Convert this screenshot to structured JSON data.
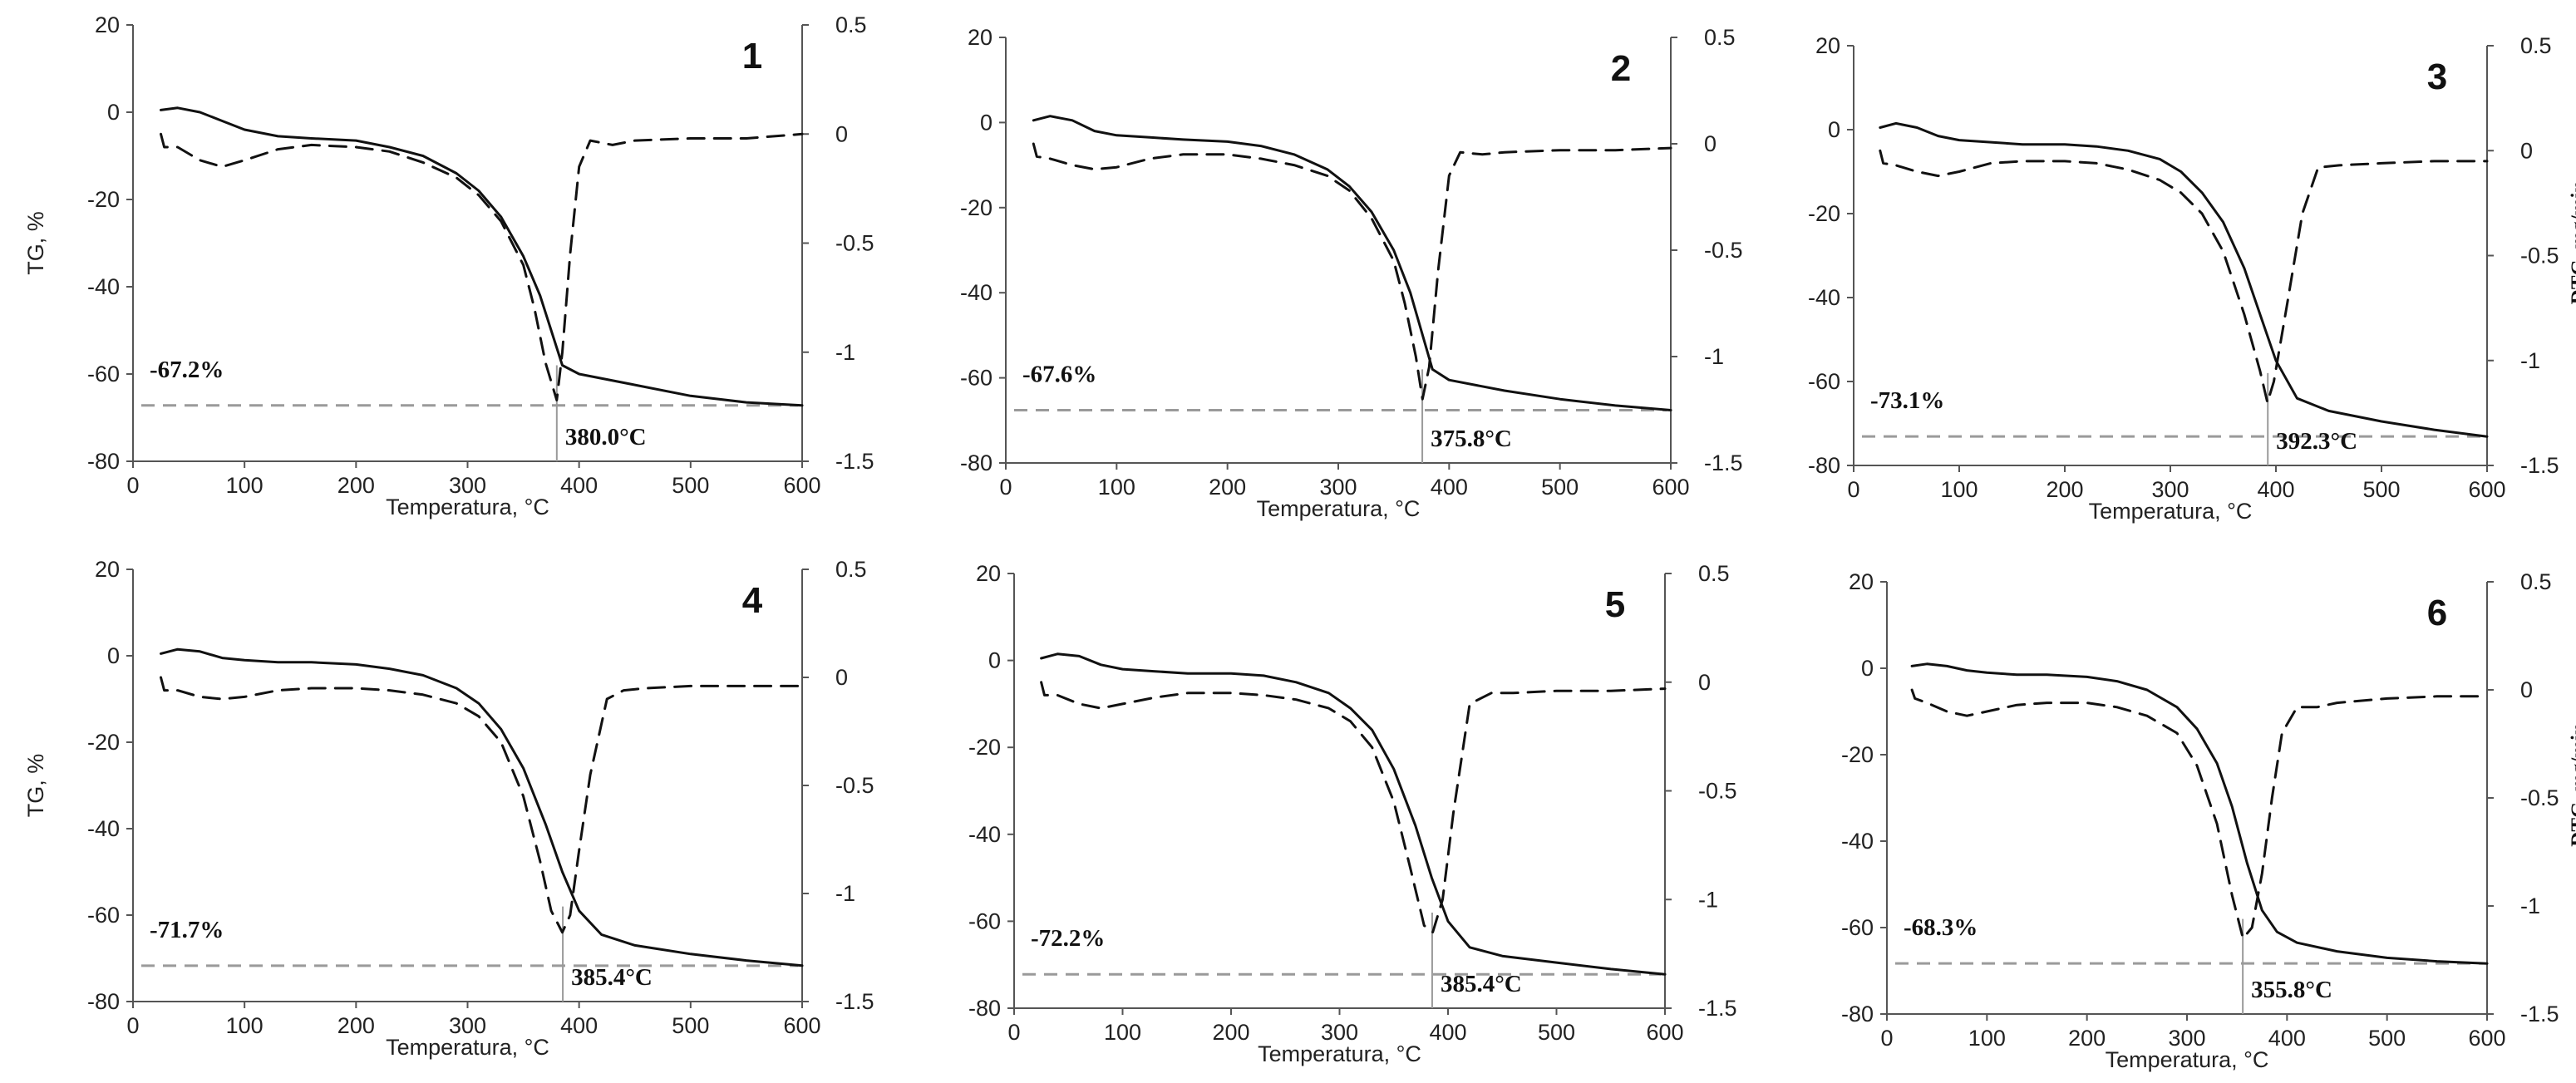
{
  "chart_data": [
    {
      "type": "line",
      "panel_number": "1",
      "xlabel": "Temperatura, °C",
      "ylabel": "TG, %",
      "y2label": "--- DTG, mg/min",
      "show_ylabel": true,
      "show_y2label": false,
      "xlim": [
        0,
        600
      ],
      "ylim": [
        -80,
        20
      ],
      "y2lim": [
        -1.5,
        0.5
      ],
      "x_ticks": [
        "0",
        "100",
        "200",
        "300",
        "400",
        "500",
        "600"
      ],
      "y_ticks": [
        "-80",
        "-60",
        "-40",
        "-20",
        "0",
        "20"
      ],
      "y2_ticks": [
        "-1.5",
        "-1",
        "-0.5",
        "0",
        "0.5"
      ],
      "mass_loss_label": "-67.2%",
      "mass_loss_value": -67.2,
      "peak_temp_label": "380.0°C",
      "peak_temp_value": 380.0,
      "series": [
        {
          "name": "TG",
          "style": "solid",
          "axis": "left",
          "x": [
            25,
            40,
            60,
            80,
            100,
            130,
            160,
            200,
            230,
            260,
            290,
            310,
            330,
            350,
            365,
            375,
            385,
            400,
            450,
            500,
            550,
            600
          ],
          "y": [
            0.5,
            1,
            0,
            -2,
            -4,
            -5.5,
            -6,
            -6.5,
            -8,
            -10,
            -14,
            -18,
            -24,
            -33,
            -42,
            -50,
            -58,
            -60,
            -62.5,
            -65,
            -66.5,
            -67.2
          ]
        },
        {
          "name": "DTG",
          "style": "dashed",
          "axis": "right",
          "x": [
            25,
            28,
            40,
            60,
            80,
            100,
            130,
            160,
            200,
            230,
            260,
            290,
            310,
            330,
            350,
            360,
            370,
            380,
            385,
            392,
            400,
            410,
            430,
            450,
            500,
            550,
            600
          ],
          "y": [
            0,
            -0.06,
            -0.06,
            -0.12,
            -0.15,
            -0.12,
            -0.07,
            -0.05,
            -0.06,
            -0.08,
            -0.13,
            -0.2,
            -0.28,
            -0.4,
            -0.6,
            -0.8,
            -1.05,
            -1.22,
            -1.0,
            -0.55,
            -0.15,
            -0.03,
            -0.05,
            -0.03,
            -0.02,
            -0.02,
            0
          ]
        }
      ]
    },
    {
      "type": "line",
      "panel_number": "2",
      "xlabel": "Temperatura, °C",
      "ylabel": "TG, %",
      "y2label": "--- DTG, mg/min",
      "show_ylabel": false,
      "show_y2label": false,
      "xlim": [
        0,
        600
      ],
      "ylim": [
        -80,
        20
      ],
      "y2lim": [
        -1.5,
        0.5
      ],
      "x_ticks": [
        "0",
        "100",
        "200",
        "300",
        "400",
        "500",
        "600"
      ],
      "y_ticks": [
        "-80",
        "-60",
        "-40",
        "-20",
        "0",
        "20"
      ],
      "y2_ticks": [
        "-1.5",
        "-1",
        "-0.5",
        "0",
        "0.5"
      ],
      "mass_loss_label": "-67.6%",
      "mass_loss_value": -67.6,
      "peak_temp_label": "375.8°C",
      "peak_temp_value": 375.8,
      "series": [
        {
          "name": "TG",
          "style": "solid",
          "axis": "left",
          "x": [
            25,
            40,
            60,
            80,
            100,
            130,
            160,
            200,
            230,
            260,
            290,
            310,
            330,
            350,
            365,
            375,
            385,
            400,
            450,
            500,
            550,
            600
          ],
          "y": [
            0.5,
            1.5,
            0.5,
            -2,
            -3,
            -3.5,
            -4,
            -4.5,
            -5.5,
            -7.5,
            -11,
            -15,
            -21,
            -30,
            -40,
            -49,
            -58,
            -60.5,
            -63,
            -65,
            -66.5,
            -67.6
          ]
        },
        {
          "name": "DTG",
          "style": "dashed",
          "axis": "right",
          "x": [
            25,
            28,
            40,
            60,
            80,
            100,
            130,
            160,
            200,
            230,
            260,
            290,
            310,
            330,
            350,
            360,
            370,
            376,
            382,
            390,
            400,
            410,
            430,
            450,
            500,
            550,
            600
          ],
          "y": [
            0,
            -0.06,
            -0.07,
            -0.1,
            -0.12,
            -0.11,
            -0.07,
            -0.05,
            -0.05,
            -0.07,
            -0.1,
            -0.15,
            -0.22,
            -0.35,
            -0.55,
            -0.75,
            -1.0,
            -1.2,
            -1.05,
            -0.6,
            -0.15,
            -0.04,
            -0.05,
            -0.04,
            -0.03,
            -0.03,
            -0.02
          ]
        }
      ]
    },
    {
      "type": "line",
      "panel_number": "3",
      "xlabel": "Temperatura, °C",
      "ylabel": "TG, %",
      "y2label": "--- DTG, mg/min",
      "show_ylabel": false,
      "show_y2label": true,
      "xlim": [
        0,
        600
      ],
      "ylim": [
        -80,
        20
      ],
      "y2lim": [
        -1.5,
        0.5
      ],
      "x_ticks": [
        "0",
        "100",
        "200",
        "300",
        "400",
        "500",
        "600"
      ],
      "y_ticks": [
        "-80",
        "-60",
        "-40",
        "-20",
        "0",
        "20"
      ],
      "y2_ticks": [
        "-1.5",
        "-1",
        "-0.5",
        "0",
        "0.5"
      ],
      "mass_loss_label": "-73.1%",
      "mass_loss_value": -73.1,
      "peak_temp_label": "392.3°C",
      "peak_temp_value": 392.3,
      "series": [
        {
          "name": "TG",
          "style": "solid",
          "axis": "left",
          "x": [
            25,
            40,
            60,
            80,
            100,
            130,
            160,
            200,
            230,
            260,
            290,
            310,
            330,
            350,
            370,
            385,
            400,
            420,
            450,
            500,
            550,
            600
          ],
          "y": [
            0.5,
            1.5,
            0.5,
            -1.5,
            -2.5,
            -3,
            -3.5,
            -3.5,
            -4,
            -5,
            -7,
            -10,
            -15,
            -22,
            -33,
            -44,
            -55,
            -64,
            -67,
            -69.5,
            -71.5,
            -73.1
          ]
        },
        {
          "name": "DTG",
          "style": "dashed",
          "axis": "right",
          "x": [
            25,
            28,
            40,
            60,
            80,
            100,
            130,
            160,
            200,
            230,
            260,
            290,
            310,
            330,
            350,
            370,
            385,
            392,
            398,
            410,
            425,
            440,
            460,
            500,
            550,
            600
          ],
          "y": [
            0,
            -0.06,
            -0.07,
            -0.1,
            -0.12,
            -0.1,
            -0.06,
            -0.05,
            -0.05,
            -0.06,
            -0.09,
            -0.14,
            -0.2,
            -0.3,
            -0.48,
            -0.78,
            -1.05,
            -1.2,
            -1.1,
            -0.75,
            -0.3,
            -0.08,
            -0.07,
            -0.06,
            -0.05,
            -0.05
          ]
        }
      ]
    },
    {
      "type": "line",
      "panel_number": "4",
      "xlabel": "Temperatura, °C",
      "ylabel": "TG, %",
      "y2label": "--- DTG, mg/min",
      "show_ylabel": true,
      "show_y2label": false,
      "xlim": [
        0,
        600
      ],
      "ylim": [
        -80,
        20
      ],
      "y2lim": [
        -1.5,
        0.5
      ],
      "x_ticks": [
        "0",
        "100",
        "200",
        "300",
        "400",
        "500",
        "600"
      ],
      "y_ticks": [
        "-80",
        "-60",
        "-40",
        "-20",
        "0",
        "20"
      ],
      "y2_ticks": [
        "-1.5",
        "-1",
        "-0.5",
        "0",
        "0.5"
      ],
      "mass_loss_label": "-71.7%",
      "mass_loss_value": -71.7,
      "peak_temp_label": "385.4°C",
      "peak_temp_value": 385.4,
      "series": [
        {
          "name": "TG",
          "style": "solid",
          "axis": "left",
          "x": [
            25,
            40,
            60,
            80,
            100,
            130,
            160,
            200,
            230,
            260,
            290,
            310,
            330,
            350,
            370,
            385,
            400,
            420,
            450,
            500,
            550,
            600
          ],
          "y": [
            0.5,
            1.5,
            1,
            -0.5,
            -1,
            -1.5,
            -1.5,
            -2,
            -3,
            -4.5,
            -7.5,
            -11,
            -17,
            -26,
            -39,
            -50,
            -59,
            -64.5,
            -67,
            -69,
            -70.5,
            -71.7
          ]
        },
        {
          "name": "DTG",
          "style": "dashed",
          "axis": "right",
          "x": [
            25,
            28,
            40,
            60,
            80,
            100,
            130,
            160,
            200,
            230,
            260,
            290,
            310,
            330,
            350,
            365,
            375,
            385,
            392,
            400,
            410,
            425,
            440,
            460,
            500,
            550,
            600
          ],
          "y": [
            0,
            -0.06,
            -0.06,
            -0.09,
            -0.1,
            -0.09,
            -0.06,
            -0.05,
            -0.05,
            -0.06,
            -0.08,
            -0.12,
            -0.18,
            -0.3,
            -0.55,
            -0.85,
            -1.08,
            -1.18,
            -1.1,
            -0.8,
            -0.45,
            -0.1,
            -0.06,
            -0.05,
            -0.04,
            -0.04,
            -0.04
          ]
        }
      ]
    },
    {
      "type": "line",
      "panel_number": "5",
      "xlabel": "Temperatura, °C",
      "ylabel": "TG, %",
      "y2label": "--- DTG, mg/min",
      "show_ylabel": false,
      "show_y2label": false,
      "xlim": [
        0,
        600
      ],
      "ylim": [
        -80,
        20
      ],
      "y2lim": [
        -1.5,
        0.5
      ],
      "x_ticks": [
        "0",
        "100",
        "200",
        "300",
        "400",
        "500",
        "600"
      ],
      "y_ticks": [
        "-80",
        "-60",
        "-40",
        "-20",
        "0",
        "20"
      ],
      "y2_ticks": [
        "-1.5",
        "-1",
        "-0.5",
        "0",
        "0.5"
      ],
      "mass_loss_label": "-72.2%",
      "mass_loss_value": -72.2,
      "peak_temp_label": "385.4°C",
      "peak_temp_value": 385.4,
      "series": [
        {
          "name": "TG",
          "style": "solid",
          "axis": "left",
          "x": [
            25,
            40,
            60,
            80,
            100,
            130,
            160,
            200,
            230,
            260,
            290,
            310,
            330,
            350,
            370,
            385,
            400,
            420,
            450,
            500,
            550,
            600
          ],
          "y": [
            0.5,
            1.5,
            1,
            -1,
            -2,
            -2.5,
            -3,
            -3,
            -3.5,
            -5,
            -7.5,
            -11,
            -16,
            -25,
            -38,
            -50,
            -60,
            -66,
            -68,
            -69.5,
            -71,
            -72.2
          ]
        },
        {
          "name": "DTG",
          "style": "dashed",
          "axis": "right",
          "x": [
            25,
            28,
            40,
            60,
            80,
            100,
            130,
            160,
            200,
            230,
            260,
            290,
            310,
            330,
            350,
            365,
            378,
            386,
            395,
            405,
            420,
            440,
            460,
            500,
            550,
            600
          ],
          "y": [
            0,
            -0.06,
            -0.06,
            -0.1,
            -0.12,
            -0.1,
            -0.07,
            -0.05,
            -0.05,
            -0.06,
            -0.08,
            -0.12,
            -0.18,
            -0.3,
            -0.55,
            -0.85,
            -1.12,
            -1.15,
            -1.0,
            -0.6,
            -0.1,
            -0.05,
            -0.05,
            -0.04,
            -0.04,
            -0.03
          ]
        }
      ]
    },
    {
      "type": "line",
      "panel_number": "6",
      "xlabel": "Temperatura, °C",
      "ylabel": "TG, %",
      "y2label": "--- DTG, mg/min",
      "show_ylabel": false,
      "show_y2label": true,
      "xlim": [
        0,
        600
      ],
      "ylim": [
        -80,
        20
      ],
      "y2lim": [
        -1.5,
        0.5
      ],
      "x_ticks": [
        "0",
        "100",
        "200",
        "300",
        "400",
        "500",
        "600"
      ],
      "y_ticks": [
        "-80",
        "-60",
        "-40",
        "-20",
        "0",
        "20"
      ],
      "y2_ticks": [
        "-1.5",
        "-1",
        "-0.5",
        "0",
        "0.5"
      ],
      "mass_loss_label": "-68.3%",
      "mass_loss_value": -68.3,
      "peak_temp_label": "355.8°C",
      "peak_temp_value": 355.8,
      "series": [
        {
          "name": "TG",
          "style": "solid",
          "axis": "left",
          "x": [
            25,
            40,
            60,
            80,
            100,
            130,
            160,
            200,
            230,
            260,
            290,
            310,
            330,
            345,
            360,
            375,
            390,
            410,
            450,
            500,
            550,
            600
          ],
          "y": [
            0.5,
            1,
            0.5,
            -0.5,
            -1,
            -1.5,
            -1.5,
            -2,
            -3,
            -5,
            -9,
            -14,
            -22,
            -32,
            -45,
            -56,
            -61,
            -63.5,
            -65.5,
            -67,
            -67.8,
            -68.3
          ]
        },
        {
          "name": "DTG",
          "style": "dashed",
          "axis": "right",
          "x": [
            25,
            28,
            40,
            60,
            80,
            100,
            130,
            160,
            200,
            230,
            260,
            290,
            310,
            330,
            345,
            356,
            365,
            375,
            385,
            395,
            410,
            430,
            450,
            500,
            550,
            600
          ],
          "y": [
            0,
            -0.04,
            -0.06,
            -0.1,
            -0.12,
            -0.1,
            -0.07,
            -0.06,
            -0.06,
            -0.08,
            -0.12,
            -0.2,
            -0.35,
            -0.62,
            -0.95,
            -1.15,
            -1.1,
            -0.85,
            -0.5,
            -0.2,
            -0.08,
            -0.08,
            -0.06,
            -0.04,
            -0.03,
            -0.03
          ]
        }
      ]
    }
  ]
}
